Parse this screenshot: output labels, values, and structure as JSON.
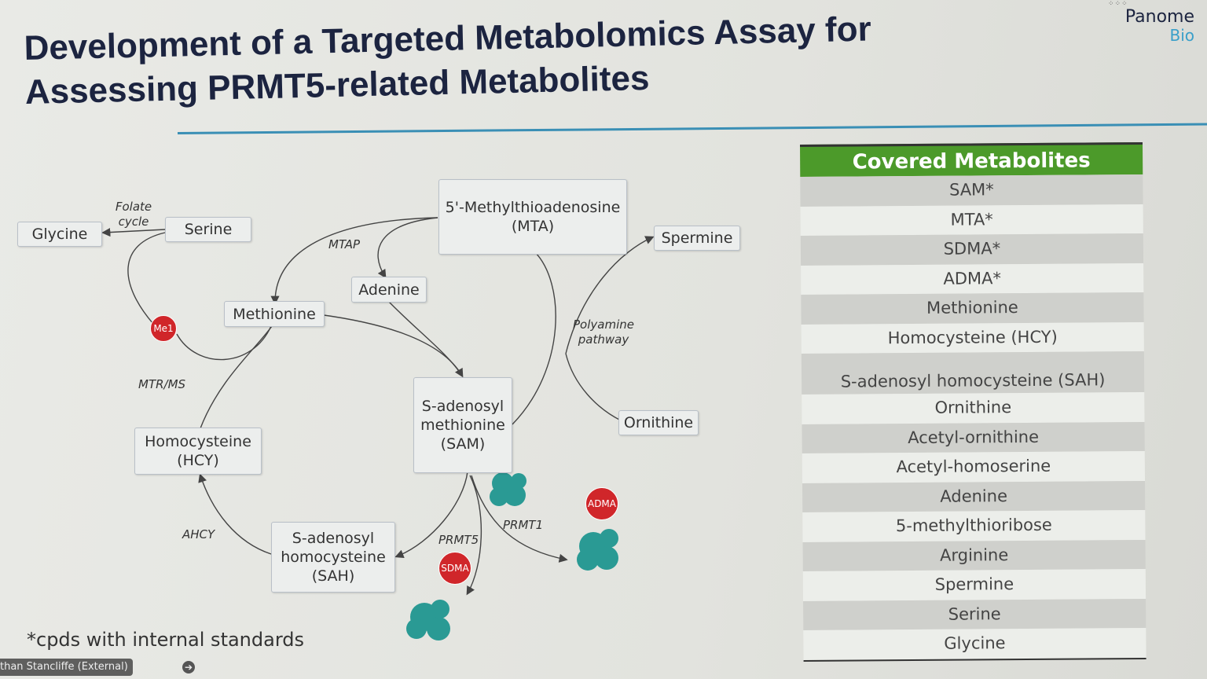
{
  "slide": {
    "title_line1": "Development of a Targeted Metabolomics Assay for",
    "title_line2": "Assessing PRMT5-related Metabolites",
    "logo": {
      "name": "Panome",
      "sub": "Bio"
    },
    "accent_color": "#3a8fb5",
    "footnote": "*cpds with internal standards"
  },
  "diagram": {
    "nodes": {
      "glycine": "Glycine",
      "serine": "Serine",
      "mta": "5'-Methylthioadenosine (MTA)",
      "spermine": "Spermine",
      "adenine": "Adenine",
      "methionine": "Methionine",
      "sam": "S-adenosyl methionine (SAM)",
      "ornithine": "Ornithine",
      "hcy": "Homocysteine (HCY)",
      "sah": "S-adenosyl homocysteine (SAH)"
    },
    "labels": {
      "folate": "Folate cycle",
      "mtap": "MTAP",
      "polyamine": "Polyamine pathway",
      "mtr": "MTR/MS",
      "ahcy": "AHCY",
      "prmt5": "PRMT5",
      "prmt1": "PRMT1"
    },
    "markers": {
      "me1": "Me1",
      "adma": "ADMA",
      "sdma": "SDMA"
    },
    "marker_color": "#d0262a",
    "protein_color": "#2a9a94"
  },
  "table": {
    "header": "Covered Metabolites",
    "header_color": "#4c9a2a",
    "rows": [
      "SAM*",
      "MTA*",
      "SDMA*",
      "ADMA*",
      "Methionine",
      "Homocysteine (HCY)",
      "S-adenosyl homocysteine (SAH)",
      "Ornithine",
      "Acetyl-ornithine",
      "Acetyl-homoserine",
      "Adenine",
      "5-methylthioribose",
      "Arginine",
      "Spermine",
      "Serine",
      "Glycine"
    ]
  },
  "meeting_overlay": {
    "participant": "than Stancliffe (External)"
  }
}
